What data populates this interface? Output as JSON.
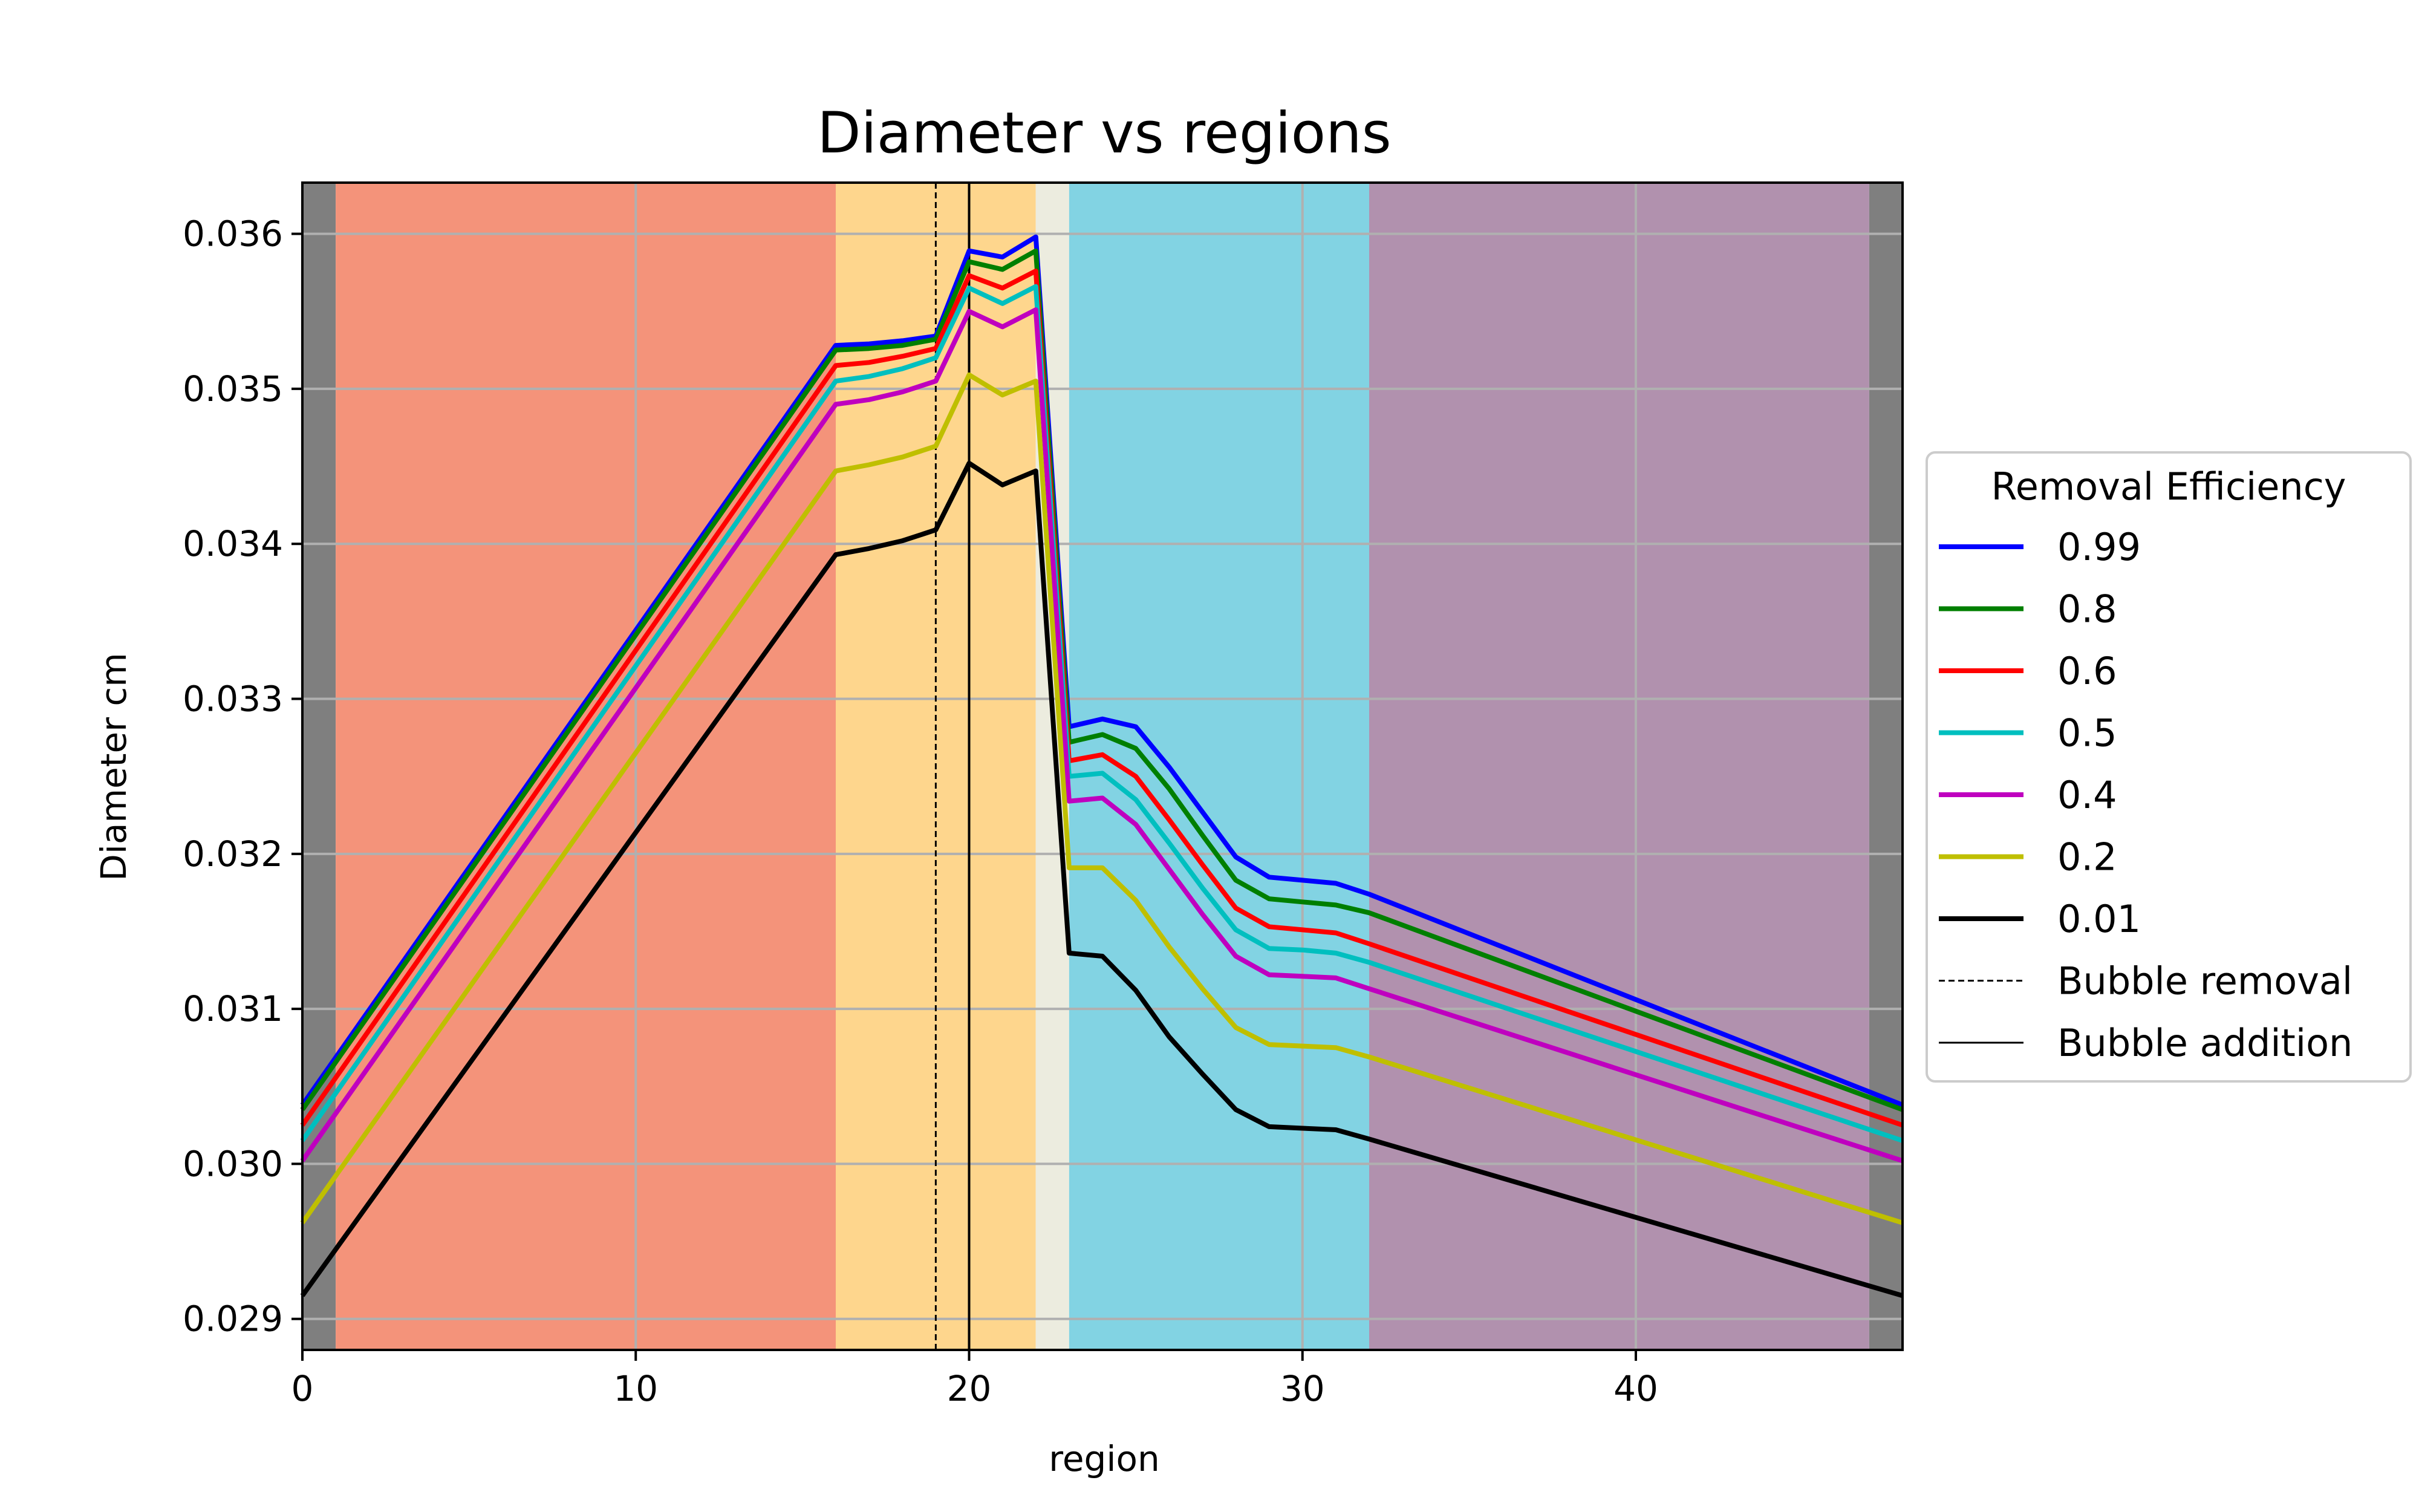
{
  "chart_data": {
    "type": "line",
    "title": "Diameter vs regions",
    "xlabel": "region",
    "ylabel": "Diameter cm",
    "xlim": [
      0,
      48
    ],
    "ylim": [
      0.0288,
      0.03633
    ],
    "xticks": [
      0,
      10,
      20,
      30,
      40
    ],
    "xtick_labels": [
      "0",
      "10",
      "20",
      "30",
      "40"
    ],
    "yticks": [
      0.029,
      0.03,
      0.031,
      0.032,
      0.033,
      0.034,
      0.035,
      0.036
    ],
    "ytick_labels": [
      "0.029",
      "0.030",
      "0.031",
      "0.032",
      "0.033",
      "0.034",
      "0.035",
      "0.036"
    ],
    "grid": true,
    "legend": {
      "title": "Removal Efficiency",
      "placement": "outside-right",
      "items": [
        "0.99",
        "0.8",
        "0.6",
        "0.5",
        "0.4",
        "0.2",
        "0.01",
        "Bubble removal",
        "Bubble addition"
      ]
    },
    "regions": [
      {
        "x0": 0,
        "x1": 1,
        "color": "#7f7f7f"
      },
      {
        "x0": 1,
        "x1": 16,
        "color": "#f4937a"
      },
      {
        "x0": 16,
        "x1": 22,
        "color": "#fed68d"
      },
      {
        "x0": 22,
        "x1": 23,
        "color": "#ececdf"
      },
      {
        "x0": 23,
        "x1": 32,
        "color": "#82d3e3"
      },
      {
        "x0": 32,
        "x1": 47,
        "color": "#b191ae"
      },
      {
        "x0": 47,
        "x1": 48,
        "color": "#7f7f7f"
      }
    ],
    "vlines": [
      {
        "x": 19,
        "style": "dashed",
        "label": "Bubble removal"
      },
      {
        "x": 20,
        "style": "solid",
        "label": "Bubble addition"
      }
    ],
    "x": [
      0,
      16,
      17,
      18,
      19,
      20,
      21,
      22,
      23,
      24,
      25,
      26,
      27,
      28,
      29,
      30,
      31,
      32,
      48
    ],
    "series": [
      {
        "name": "0.99",
        "color": "#0000ff",
        "values": [
          0.03038,
          0.03528,
          0.03529,
          0.03531,
          0.03534,
          0.03589,
          0.03585,
          0.03598,
          0.03282,
          0.03287,
          0.03282,
          0.03256,
          0.03227,
          0.03198,
          0.03185,
          0.03183,
          0.03181,
          0.03174,
          0.03038
        ]
      },
      {
        "name": "0.8",
        "color": "#007f00",
        "values": [
          0.03035,
          0.03525,
          0.03526,
          0.03528,
          0.03532,
          0.03582,
          0.03577,
          0.03589,
          0.03272,
          0.03277,
          0.03268,
          0.03242,
          0.03212,
          0.03183,
          0.03171,
          0.03169,
          0.03167,
          0.03162,
          0.03035
        ]
      },
      {
        "name": "0.6",
        "color": "#ff0000",
        "values": [
          0.03025,
          0.03515,
          0.03517,
          0.03521,
          0.03526,
          0.03573,
          0.03565,
          0.03576,
          0.0326,
          0.03264,
          0.0325,
          0.03222,
          0.03193,
          0.03165,
          0.03153,
          0.03151,
          0.03149,
          0.03142,
          0.03025
        ]
      },
      {
        "name": "0.5",
        "color": "#00bfbf",
        "values": [
          0.03015,
          0.03505,
          0.03508,
          0.03513,
          0.0352,
          0.03565,
          0.03555,
          0.03566,
          0.0325,
          0.03252,
          0.03235,
          0.03207,
          0.03178,
          0.03151,
          0.03139,
          0.03138,
          0.03136,
          0.0313,
          0.03015
        ]
      },
      {
        "name": "0.4",
        "color": "#bf00bf",
        "values": [
          0.03002,
          0.0349,
          0.03493,
          0.03498,
          0.03505,
          0.0355,
          0.0354,
          0.03551,
          0.03234,
          0.03236,
          0.03219,
          0.0319,
          0.03161,
          0.03134,
          0.03122,
          0.03121,
          0.0312,
          0.03113,
          0.03002
        ]
      },
      {
        "name": "0.2",
        "color": "#bfbf00",
        "values": [
          0.02962,
          0.03447,
          0.03451,
          0.03456,
          0.03463,
          0.03509,
          0.03496,
          0.03505,
          0.03191,
          0.03191,
          0.0317,
          0.0314,
          0.03113,
          0.03088,
          0.03077,
          0.03076,
          0.03075,
          0.03069,
          0.02962
        ]
      },
      {
        "name": "0.01",
        "color": "#000000",
        "values": [
          0.02915,
          0.03393,
          0.03397,
          0.03402,
          0.03409,
          0.03452,
          0.03438,
          0.03447,
          0.03136,
          0.03134,
          0.03112,
          0.03082,
          0.03058,
          0.03035,
          0.03024,
          0.03023,
          0.03022,
          0.03016,
          0.02915
        ]
      }
    ]
  }
}
